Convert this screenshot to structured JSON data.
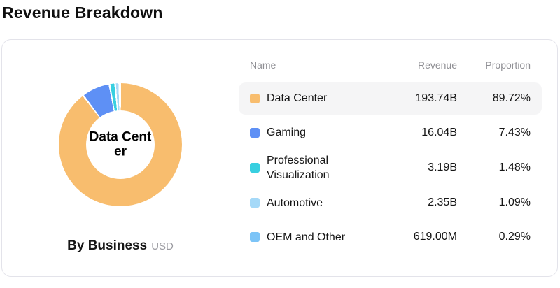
{
  "title": "Revenue Breakdown",
  "card": {
    "donut": {
      "center_label_line1": "Data Cent",
      "center_label_line2": "er",
      "center_label_full": "Data Center",
      "caption": "By Business",
      "caption_unit": "USD"
    },
    "table": {
      "headers": {
        "name": "Name",
        "revenue": "Revenue",
        "proportion": "Proportion"
      },
      "rows": [
        {
          "name": "Data Center",
          "revenue": "193.74B",
          "proportion": "89.72%",
          "color": "#F8BD6E",
          "highlighted": true
        },
        {
          "name": "Gaming",
          "revenue": "16.04B",
          "proportion": "7.43%",
          "color": "#5E90F5",
          "highlighted": false
        },
        {
          "name": "Professional Visualization",
          "revenue": "3.19B",
          "proportion": "1.48%",
          "color": "#38CFE0",
          "highlighted": false
        },
        {
          "name": "Automotive",
          "revenue": "2.35B",
          "proportion": "1.09%",
          "color": "#A5D9F8",
          "highlighted": false
        },
        {
          "name": "OEM and Other",
          "revenue": "619.00M",
          "proportion": "0.29%",
          "color": "#7CC4F7",
          "highlighted": false
        }
      ]
    }
  },
  "colors": {
    "row_highlight_bg": "#F5F5F6",
    "card_border": "#E3E3EA",
    "header_text": "#8F8F94",
    "body_text": "#161616",
    "donut_gap": "#FFFFFF"
  },
  "chart_data": {
    "type": "pie",
    "donut": true,
    "title": "Revenue Breakdown",
    "subtitle": "By Business (USD)",
    "center_label": "Data Center",
    "categories": [
      "Data Center",
      "Gaming",
      "Professional Visualization",
      "Automotive",
      "OEM and Other"
    ],
    "values_billions_usd": [
      193.74,
      16.04,
      3.19,
      2.35,
      0.619
    ],
    "value_labels": [
      "193.74B",
      "16.04B",
      "3.19B",
      "2.35B",
      "619.00M"
    ],
    "proportions_pct": [
      89.72,
      7.43,
      1.48,
      1.09,
      0.29
    ],
    "colors": [
      "#F8BD6E",
      "#5E90F5",
      "#38CFE0",
      "#A5D9F8",
      "#7CC4F7"
    ],
    "start_angle_deg": 0,
    "direction": "clockwise",
    "legend_position": "right-table"
  }
}
